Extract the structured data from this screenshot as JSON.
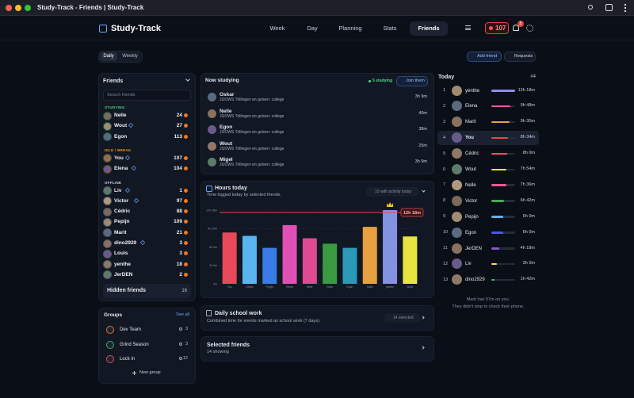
{
  "window": {
    "title": "Study-Track - Friends | Study-Track"
  },
  "header": {
    "app_name": "Study-Track",
    "nav": [
      "Week",
      "Day",
      "Planning",
      "Stats",
      "Friends"
    ],
    "streak": 107,
    "notifications": 5
  },
  "view_toggle": [
    "Daily",
    "Weekly"
  ],
  "actions": [
    "Add friend",
    "Requests"
  ],
  "friends": {
    "title": "Friends",
    "search_placeholder": "Search friends",
    "sections": [
      {
        "label": "STUDYING",
        "color": "#4ade80",
        "members": [
          {
            "name": "Nelle",
            "streak": 24,
            "favorite": false
          },
          {
            "name": "Wout",
            "streak": 27,
            "favorite": true
          },
          {
            "name": "Egon",
            "streak": 113,
            "favorite": false
          }
        ]
      },
      {
        "label": "IDLE / BREAK",
        "color": "#f59e0b",
        "members": [
          {
            "name": "You",
            "streak": 107,
            "favorite": true
          },
          {
            "name": "Elena",
            "streak": 104,
            "favorite": true
          }
        ]
      },
      {
        "label": "OFFLINE",
        "color": "#cbd5e1",
        "members": [
          {
            "name": "Liv",
            "streak": 1,
            "favorite": true
          },
          {
            "name": "Victor",
            "streak": 97,
            "favorite": true
          },
          {
            "name": "Cédric",
            "streak": 88,
            "favorite": false
          },
          {
            "name": "Pepijn",
            "streak": 109,
            "favorite": false
          },
          {
            "name": "Marit",
            "streak": 21,
            "favorite": false
          },
          {
            "name": "dino2929",
            "streak": 3,
            "favorite": true
          },
          {
            "name": "Louis",
            "streak": 3,
            "favorite": false
          },
          {
            "name": "yenthe",
            "streak": 18,
            "favorite": false
          },
          {
            "name": "JerDEN",
            "streak": 2,
            "favorite": false
          }
        ]
      }
    ],
    "hidden": {
      "label": "Hidden friends",
      "count": 16
    }
  },
  "groups": {
    "title": "Groups",
    "see_all": "See all",
    "items": [
      {
        "name": "Dev Team",
        "members": 3
      },
      {
        "name": "Grind Season",
        "members": 3
      },
      {
        "name": "Lock in",
        "members": 12
      }
    ],
    "new_group": "New group"
  },
  "now_studying": {
    "title": "Now studying",
    "count_label": "5 studying",
    "join": "Join them",
    "rows": [
      {
        "name": "Oskar",
        "activity": "JIJOWS Trillingen en golven: college",
        "duration": "3h 9m"
      },
      {
        "name": "Nelle",
        "activity": "JIJOWS Trillingen en golven: college",
        "duration": "40m"
      },
      {
        "name": "Egon",
        "activity": "JIJOWS Trillingen en golven: college",
        "duration": "38m"
      },
      {
        "name": "Wout",
        "activity": "JIJOWS Trillingen en golven: college",
        "duration": "25m"
      },
      {
        "name": "Migel",
        "activity": "JIJOWS Trillingen en golven: college",
        "duration": "3h 9m"
      }
    ]
  },
  "hours_today": {
    "title": "Hours today",
    "subtitle": "Time logged today by selected friends.",
    "filter": "10 with activity today",
    "chart": {
      "type": "bar",
      "categories": [
        "You",
        "Cédric",
        "Pepijn",
        "Elena",
        "Nelle",
        "Victor",
        "Egon",
        "Marit",
        "yenthe",
        "Wout"
      ],
      "values": [
        8.57,
        8,
        6,
        9.8,
        7.6,
        6.7,
        6,
        9.5,
        12.3,
        7.9
      ],
      "colors": [
        "#e8495a",
        "#5ab4f0",
        "#3b7be8",
        "#e050b4",
        "#e04a92",
        "#3a9a42",
        "#2a9ab8",
        "#e8a040",
        "#8492e2",
        "#e8e63e"
      ],
      "ylim": [
        0,
        12.3
      ],
      "yticks": [
        {
          "value": 0,
          "label": "0m"
        },
        {
          "value": 3.075,
          "label": "3h 5m"
        },
        {
          "value": 6.15,
          "label": "6h 9m"
        },
        {
          "value": 9.225,
          "label": "9h 14m"
        },
        {
          "value": 12.3,
          "label": "12h 18m"
        }
      ],
      "max_line": {
        "value": 12.3,
        "label": "12h 18m",
        "color": "#e8494a"
      }
    }
  },
  "school_work": {
    "title": "Daily school work",
    "subtitle": "Combined time for events marked as school work (7 days).",
    "filter": "14 selected"
  },
  "selected_friends": {
    "title": "Selected friends",
    "subtitle": "14 showing"
  },
  "today": {
    "title": "Today",
    "rank": "#4",
    "rows": [
      {
        "rank": 1,
        "name": "yenthe",
        "minutes": 738,
        "time": "12h 18m",
        "color": "#8b8ff0"
      },
      {
        "rank": 2,
        "name": "Elena",
        "minutes": 588,
        "time": "9h 48m",
        "color": "#e85aa8"
      },
      {
        "rank": 3,
        "name": "Marit",
        "minutes": 570,
        "time": "9h 30m",
        "color": "#f0a040"
      },
      {
        "rank": 4,
        "name": "You",
        "minutes": 514,
        "time": "8h 34m",
        "color": "#e84a4a",
        "highlight": true
      },
      {
        "rank": 5,
        "name": "Cédric",
        "minutes": 480,
        "time": "8h 0m",
        "color": "#f0506a"
      },
      {
        "rank": 6,
        "name": "Wout",
        "minutes": 474,
        "time": "7h 54m",
        "color": "#e8e840"
      },
      {
        "rank": 7,
        "name": "Nelle",
        "minutes": 456,
        "time": "7h 36m",
        "color": "#e85a90"
      },
      {
        "rank": 8,
        "name": "Victor",
        "minutes": 402,
        "time": "6h 42m",
        "color": "#4aa84a"
      },
      {
        "rank": 9,
        "name": "Pepijn",
        "minutes": 360,
        "time": "6h 0m",
        "color": "#60b0f0"
      },
      {
        "rank": 10,
        "name": "Egon",
        "minutes": 360,
        "time": "6h 0m",
        "color": "#4060e0"
      },
      {
        "rank": 11,
        "name": "JerDEN",
        "minutes": 258,
        "time": "4h 18m",
        "color": "#9050d0"
      },
      {
        "rank": 12,
        "name": "Liv",
        "minutes": 180,
        "time": "3h 0m",
        "color": "#f0e060"
      },
      {
        "rank": 13,
        "name": "dino2929",
        "minutes": 102,
        "time": "1h 42m",
        "color": "#40c060"
      }
    ],
    "note": [
      "Marit has 57m on you.",
      "They didn't stop to check their phone."
    ]
  }
}
